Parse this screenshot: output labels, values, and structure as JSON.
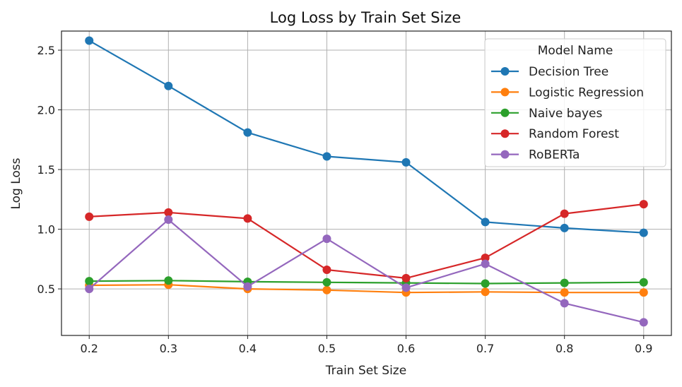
{
  "chart_data": {
    "type": "line",
    "title": "Log Loss by Train Set Size",
    "xlabel": "Train Set Size",
    "ylabel": "Log Loss",
    "x": [
      0.2,
      0.3,
      0.4,
      0.5,
      0.6,
      0.7,
      0.8,
      0.9
    ],
    "x_ticks": [
      "0.2",
      "0.3",
      "0.4",
      "0.5",
      "0.6",
      "0.7",
      "0.8",
      "0.9"
    ],
    "y_ticks": [
      "0.5",
      "1.0",
      "1.5",
      "2.0",
      "2.5"
    ],
    "y_tick_values": [
      0.5,
      1.0,
      1.5,
      2.0,
      2.5
    ],
    "xlim": [
      0.165,
      0.935
    ],
    "ylim": [
      0.11,
      2.66
    ],
    "grid": true,
    "legend": {
      "title": "Model Name",
      "placement": "top-right"
    },
    "series": [
      {
        "name": "Decision Tree",
        "color": "#1f77b4",
        "values": [
          2.58,
          2.2,
          1.81,
          1.61,
          1.56,
          1.06,
          1.01,
          0.97
        ]
      },
      {
        "name": "Logistic Regression",
        "color": "#ff7f0e",
        "values": [
          0.53,
          0.535,
          0.5,
          0.49,
          0.47,
          0.475,
          0.47,
          0.47
        ]
      },
      {
        "name": "Naive bayes",
        "color": "#2ca02c",
        "values": [
          0.565,
          0.57,
          0.56,
          0.555,
          0.55,
          0.545,
          0.55,
          0.555
        ]
      },
      {
        "name": "Random Forest",
        "color": "#d62728",
        "values": [
          1.105,
          1.14,
          1.09,
          0.66,
          0.59,
          0.76,
          1.13,
          1.21
        ]
      },
      {
        "name": "RoBERTa",
        "color": "#9467bd",
        "values": [
          0.5,
          1.08,
          0.52,
          0.92,
          0.51,
          0.71,
          0.38,
          0.22
        ]
      }
    ]
  }
}
